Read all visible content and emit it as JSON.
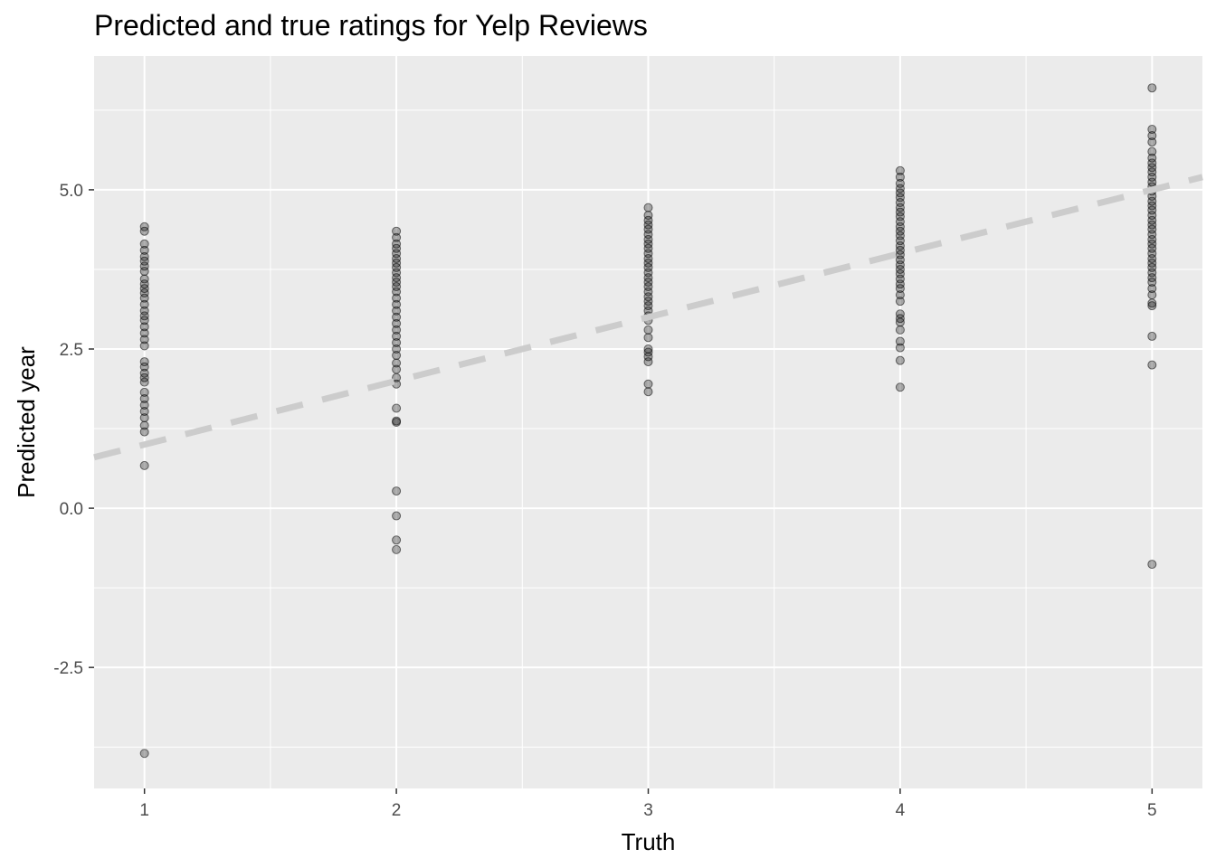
{
  "chart_data": {
    "type": "scatter",
    "title": "Predicted and true ratings for Yelp Reviews",
    "xlabel": "Truth",
    "ylabel": "Predicted year",
    "xlim": [
      0.8,
      5.2
    ],
    "ylim": [
      -4.4,
      7.1
    ],
    "x_ticks": [
      1,
      2,
      3,
      4,
      5
    ],
    "x_tick_labels": [
      "1",
      "2",
      "3",
      "4",
      "5"
    ],
    "y_ticks": [
      -2.5,
      0.0,
      2.5,
      5.0
    ],
    "y_tick_labels": [
      "-2.5",
      "0.0",
      "2.5",
      "5.0"
    ],
    "grid": true,
    "panel_background": "#ebebeb",
    "point_color": "#000000",
    "reference_line": {
      "type": "identity",
      "color": "#cccccc",
      "style": "dashed",
      "slope": 1,
      "intercept": 0
    },
    "series": [
      {
        "x": 1,
        "values": [
          4.42,
          4.35,
          4.15,
          4.05,
          3.95,
          3.88,
          3.8,
          3.72,
          3.6,
          3.52,
          3.45,
          3.38,
          3.3,
          3.2,
          3.1,
          3.02,
          2.95,
          2.85,
          2.75,
          2.65,
          2.55,
          2.3,
          2.22,
          2.12,
          2.05,
          1.98,
          1.82,
          1.72,
          1.62,
          1.52,
          1.42,
          1.3,
          1.2,
          0.67,
          -3.85
        ]
      },
      {
        "x": 2,
        "values": [
          4.35,
          4.25,
          4.15,
          4.08,
          4.0,
          3.92,
          3.85,
          3.78,
          3.7,
          3.62,
          3.55,
          3.48,
          3.4,
          3.3,
          3.2,
          3.1,
          3.0,
          2.9,
          2.8,
          2.7,
          2.6,
          2.5,
          2.4,
          2.28,
          2.18,
          2.05,
          1.95,
          1.57,
          1.37,
          1.35,
          0.27,
          -0.12,
          -0.5,
          -0.65
        ]
      },
      {
        "x": 3,
        "values": [
          4.72,
          4.6,
          4.52,
          4.45,
          4.38,
          4.3,
          4.22,
          4.15,
          4.08,
          4.0,
          3.92,
          3.85,
          3.78,
          3.7,
          3.62,
          3.55,
          3.48,
          3.4,
          3.32,
          3.25,
          3.18,
          3.1,
          3.02,
          2.95,
          2.8,
          2.68,
          2.5,
          2.45,
          2.38,
          2.3,
          1.95,
          1.83
        ]
      },
      {
        "x": 4,
        "values": [
          5.3,
          5.2,
          5.1,
          5.02,
          4.95,
          4.88,
          4.8,
          4.72,
          4.65,
          4.58,
          4.5,
          4.42,
          4.35,
          4.28,
          4.2,
          4.12,
          4.05,
          3.98,
          3.9,
          3.82,
          3.75,
          3.68,
          3.6,
          3.52,
          3.45,
          3.35,
          3.25,
          3.05,
          2.98,
          2.92,
          2.8,
          2.62,
          2.52,
          2.32,
          1.9
        ]
      },
      {
        "x": 5,
        "values": [
          6.6,
          5.95,
          5.85,
          5.75,
          5.6,
          5.5,
          5.42,
          5.35,
          5.28,
          5.2,
          5.12,
          5.05,
          4.98,
          4.9,
          4.82,
          4.75,
          4.68,
          4.6,
          4.52,
          4.45,
          4.38,
          4.3,
          4.22,
          4.15,
          4.08,
          4.0,
          3.92,
          3.85,
          3.78,
          3.7,
          3.62,
          3.55,
          3.45,
          3.35,
          3.22,
          3.18,
          2.7,
          2.25,
          -0.88
        ]
      }
    ]
  }
}
